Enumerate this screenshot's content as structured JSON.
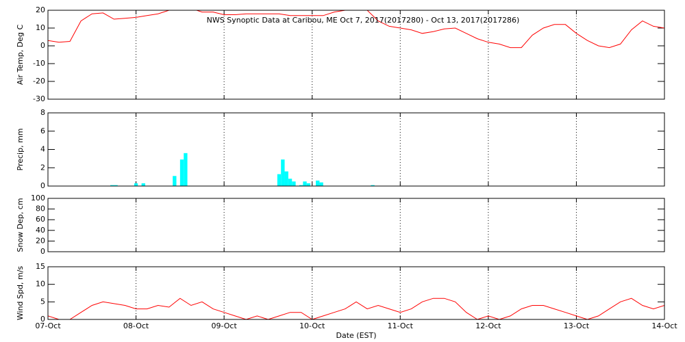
{
  "chart_data": [
    {
      "type": "line",
      "title": "NWS Synoptic Data at Caribou, ME   Oct  7, 2017(2017280) - Oct 13, 2017(2017286)",
      "ylabel": "Air Temp, Deg C",
      "color": "#ff0000",
      "x": [
        0,
        3,
        6,
        9,
        12,
        15,
        18,
        21,
        24,
        27,
        30,
        33,
        36,
        39,
        42,
        45,
        48,
        51,
        54,
        57,
        60,
        63,
        66,
        69,
        72,
        75,
        78,
        81,
        84,
        87,
        90,
        93,
        96,
        99,
        102,
        105,
        108,
        111,
        114,
        117,
        120,
        123,
        126,
        129,
        132,
        135,
        138,
        141,
        144,
        147,
        150,
        153,
        156,
        159,
        162,
        165,
        168
      ],
      "values": [
        3,
        2,
        2.5,
        14,
        18,
        18.5,
        15,
        15.5,
        16,
        17,
        18,
        20,
        21,
        21,
        19,
        19,
        17.5,
        17.5,
        18,
        18,
        18,
        18,
        17,
        17,
        17,
        17,
        19,
        20,
        22,
        20,
        14,
        11,
        10,
        9,
        7,
        8,
        9.5,
        10,
        7,
        4,
        2,
        1,
        -1,
        -1,
        6,
        10,
        12,
        12,
        7,
        3,
        0,
        -1,
        1,
        9,
        14,
        11,
        10
      ],
      "xlim": [
        0,
        168
      ],
      "xticks": [
        0,
        24,
        48,
        72,
        96,
        120,
        144,
        168
      ],
      "ylim": [
        -30,
        20
      ],
      "yticks": [
        -30,
        -20,
        -10,
        0,
        10,
        20
      ],
      "grid": true
    },
    {
      "type": "bar",
      "ylabel": "Precip, mm",
      "color": "#00ffff",
      "x": [
        17.5,
        18.5,
        24,
        26,
        34.5,
        36.5,
        37.5,
        63,
        64,
        65,
        66,
        67,
        69,
        70,
        71,
        73.5,
        74.5,
        88.5
      ],
      "values": [
        0.1,
        0.1,
        0.3,
        0.3,
        1.1,
        2.9,
        3.6,
        1.3,
        2.9,
        1.6,
        0.8,
        0.5,
        0.1,
        0.5,
        0.3,
        0.6,
        0.4,
        0.1
      ],
      "xlim": [
        0,
        168
      ],
      "xticks": [
        0,
        24,
        48,
        72,
        96,
        120,
        144,
        168
      ],
      "ylim": [
        0,
        8
      ],
      "yticks": [
        0,
        2,
        4,
        6,
        8
      ],
      "grid": true
    },
    {
      "type": "empty",
      "ylabel": "Snow Dep, cm",
      "xlim": [
        0,
        168
      ],
      "xticks": [
        0,
        24,
        48,
        72,
        96,
        120,
        144,
        168
      ],
      "ylim": [
        0,
        100
      ],
      "yticks": [
        0,
        20,
        40,
        60,
        80,
        100
      ],
      "grid": true
    },
    {
      "type": "line",
      "ylabel": "Wind Spd, m/s",
      "xlabel": "Date (EST)",
      "color": "#ff0000",
      "x": [
        0,
        3,
        6,
        9,
        12,
        15,
        18,
        21,
        24,
        27,
        30,
        33,
        36,
        39,
        42,
        45,
        48,
        51,
        54,
        57,
        60,
        63,
        66,
        69,
        72,
        75,
        78,
        81,
        84,
        87,
        90,
        93,
        96,
        99,
        102,
        105,
        108,
        111,
        114,
        117,
        120,
        123,
        126,
        129,
        132,
        135,
        138,
        141,
        144,
        147,
        150,
        153,
        156,
        159,
        162,
        165,
        168
      ],
      "values": [
        1,
        0,
        0,
        2,
        4,
        5,
        4.5,
        4,
        3,
        3,
        4,
        3.5,
        6,
        4,
        5,
        3,
        2,
        1,
        0,
        1,
        0,
        1,
        2,
        2,
        0,
        1,
        2,
        3,
        5,
        3,
        4,
        3,
        2,
        3,
        5,
        6,
        6,
        5,
        2,
        0,
        1,
        0,
        1,
        3,
        4,
        4,
        3,
        2,
        1,
        0,
        1,
        3,
        5,
        6,
        4,
        3,
        4
      ],
      "xlim": [
        0,
        168
      ],
      "xticks": [
        {
          "value": 0,
          "label": "07-Oct"
        },
        {
          "value": 24,
          "label": "08-Oct"
        },
        {
          "value": 48,
          "label": "09-Oct"
        },
        {
          "value": 72,
          "label": "10-Oct"
        },
        {
          "value": 96,
          "label": "11-Oct"
        },
        {
          "value": 120,
          "label": "12-Oct"
        },
        {
          "value": 144,
          "label": "13-Oct"
        },
        {
          "value": 168,
          "label": "14-Oct"
        }
      ],
      "ylim": [
        0,
        15
      ],
      "yticks": [
        0,
        5,
        10,
        15
      ],
      "grid": true
    }
  ]
}
